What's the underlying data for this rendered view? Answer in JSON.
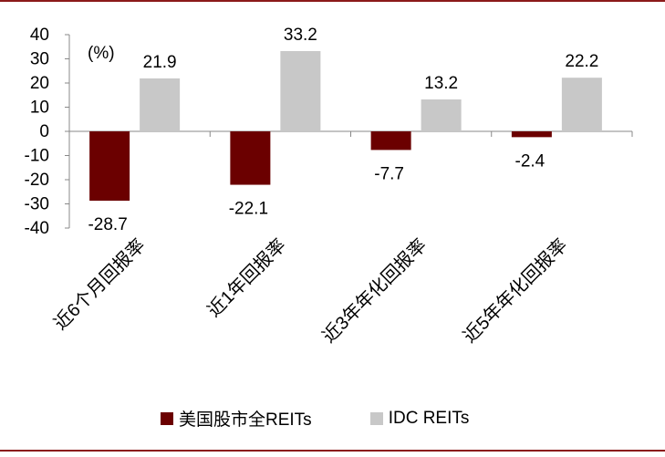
{
  "chart_data": {
    "type": "bar",
    "unit_label": "(%)",
    "categories": [
      "近6个月回报率",
      "近1年回报率",
      "近3年年化回报率",
      "近5年年化回报率"
    ],
    "series": [
      {
        "name": "美国股市全REITs",
        "color": "#6b0000",
        "values": [
          -28.7,
          -22.1,
          -7.7,
          -2.4
        ],
        "labels": [
          "-28.7",
          "-22.1",
          "-7.7",
          "-2.4"
        ]
      },
      {
        "name": "IDC REITs",
        "color": "#c8c8c8",
        "values": [
          21.9,
          33.2,
          13.2,
          22.2
        ],
        "labels": [
          "21.9",
          "33.2",
          "13.2",
          "22.2"
        ]
      }
    ],
    "ylim": [
      -40,
      40
    ],
    "yticks": [
      40,
      30,
      20,
      10,
      0,
      -10,
      -20,
      -30,
      -40
    ],
    "ytick_labels": [
      "40",
      "30",
      "20",
      "10",
      "0",
      "-10",
      "-20",
      "-30",
      "-40"
    ],
    "legend_position": "bottom"
  }
}
